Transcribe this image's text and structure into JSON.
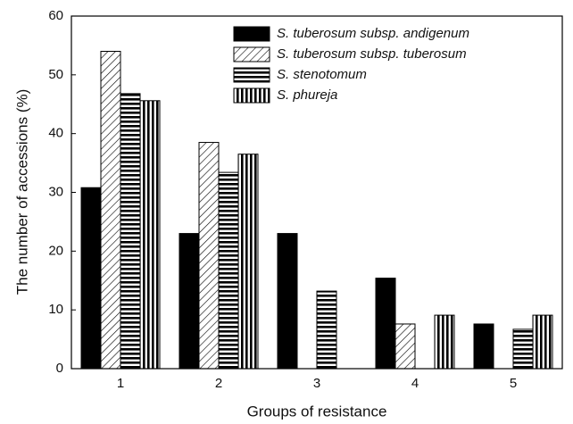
{
  "chart_data": {
    "type": "bar",
    "xlabel": "Groups of resistance",
    "ylabel": "The number of accessions (%)",
    "categories": [
      "1",
      "2",
      "3",
      "4",
      "5"
    ],
    "series": [
      {
        "name": "S. tuberosum subsp. andigenum",
        "color": "#000000",
        "hatch": "solid",
        "values": [
          30.8,
          23,
          23,
          15.4,
          7.6
        ]
      },
      {
        "name": "S. tuberosum subsp. tuberosum",
        "color": "#000000",
        "hatch": "diagonal",
        "values": [
          54,
          38.5,
          0,
          7.6,
          0
        ]
      },
      {
        "name": "S. stenotomum",
        "color": "#000000",
        "hatch": "horizontal",
        "values": [
          46.8,
          33.4,
          13.2,
          0,
          6.7
        ]
      },
      {
        "name": "S. phureja",
        "color": "#000000",
        "hatch": "vertical",
        "values": [
          45.6,
          36.5,
          0,
          9.1,
          9.1
        ]
      }
    ],
    "ylim": [
      0,
      60
    ],
    "yticks": [
      0,
      10,
      20,
      30,
      40,
      50,
      60
    ],
    "legend": "upper right"
  }
}
